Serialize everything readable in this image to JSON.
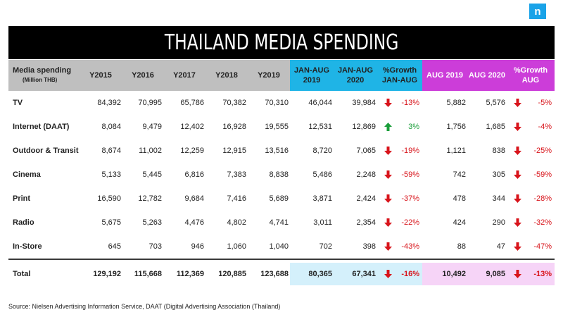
{
  "logo_letter": "n",
  "title": "THAILAND MEDIA SPENDING",
  "header": {
    "media": "Media spending",
    "media_sub": "(Million THB)",
    "y2015": "Y2015",
    "y2016": "Y2016",
    "y2017": "Y2017",
    "y2018": "Y2018",
    "y2019": "Y2019",
    "janaug2019_1": "JAN-AUG",
    "janaug2019_2": "2019",
    "janaug2020_1": "JAN-AUG",
    "janaug2020_2": "2020",
    "growth_janaug_1": "%Growth",
    "growth_janaug_2": "JAN-AUG",
    "aug2019": "AUG 2019",
    "aug2020": "AUG 2020",
    "growth_aug_1": "%Growth",
    "growth_aug_2": "AUG"
  },
  "rows": [
    {
      "name": "TV",
      "y2015": "84,392",
      "y2016": "70,995",
      "y2017": "65,786",
      "y2018": "70,382",
      "y2019": "70,310",
      "ja2019": "46,044",
      "ja2020": "39,984",
      "g1_dir": "down",
      "g1": "-13%",
      "a2019": "5,882",
      "a2020": "5,576",
      "g2_dir": "down",
      "g2": "-5%"
    },
    {
      "name": "Internet (DAAT)",
      "y2015": "8,084",
      "y2016": "9,479",
      "y2017": "12,402",
      "y2018": "16,928",
      "y2019": "19,555",
      "ja2019": "12,531",
      "ja2020": "12,869",
      "g1_dir": "up",
      "g1": "3%",
      "a2019": "1,756",
      "a2020": "1,685",
      "g2_dir": "down",
      "g2": "-4%"
    },
    {
      "name": "Outdoor & Transit",
      "y2015": "8,674",
      "y2016": "11,002",
      "y2017": "12,259",
      "y2018": "12,915",
      "y2019": "13,516",
      "ja2019": "8,720",
      "ja2020": "7,065",
      "g1_dir": "down",
      "g1": "-19%",
      "a2019": "1,121",
      "a2020": "838",
      "g2_dir": "down",
      "g2": "-25%"
    },
    {
      "name": "Cinema",
      "y2015": "5,133",
      "y2016": "5,445",
      "y2017": "6,816",
      "y2018": "7,383",
      "y2019": "8,838",
      "ja2019": "5,486",
      "ja2020": "2,248",
      "g1_dir": "down",
      "g1": "-59%",
      "a2019": "742",
      "a2020": "305",
      "g2_dir": "down",
      "g2": "-59%"
    },
    {
      "name": "Print",
      "y2015": "16,590",
      "y2016": "12,782",
      "y2017": "9,684",
      "y2018": "7,416",
      "y2019": "5,689",
      "ja2019": "3,871",
      "ja2020": "2,424",
      "g1_dir": "down",
      "g1": "-37%",
      "a2019": "478",
      "a2020": "344",
      "g2_dir": "down",
      "g2": "-28%"
    },
    {
      "name": "Radio",
      "y2015": "5,675",
      "y2016": "5,263",
      "y2017": "4,476",
      "y2018": "4,802",
      "y2019": "4,741",
      "ja2019": "3,011",
      "ja2020": "2,354",
      "g1_dir": "down",
      "g1": "-22%",
      "a2019": "424",
      "a2020": "290",
      "g2_dir": "down",
      "g2": "-32%"
    },
    {
      "name": "In-Store",
      "y2015": "645",
      "y2016": "703",
      "y2017": "946",
      "y2018": "1,060",
      "y2019": "1,040",
      "ja2019": "702",
      "ja2020": "398",
      "g1_dir": "down",
      "g1": "-43%",
      "a2019": "88",
      "a2020": "47",
      "g2_dir": "down",
      "g2": "-47%"
    }
  ],
  "total": {
    "name": "Total",
    "y2015": "129,192",
    "y2016": "115,668",
    "y2017": "112,369",
    "y2018": "120,885",
    "y2019": "123,688",
    "ja2019": "80,365",
    "ja2020": "67,341",
    "g1_dir": "down",
    "g1": "-16%",
    "a2019": "10,492",
    "a2020": "9,085",
    "g2_dir": "down",
    "g2": "-13%"
  },
  "source": "Source: Nielsen Advertising Information Service, DAAT (Digital Advertising Association (Thailand)",
  "colors": {
    "header_grey": "#bfbfbf",
    "header_blue": "#1fb4e6",
    "header_pink": "#cc3dd9",
    "arrow_down": "#d8141b",
    "arrow_up": "#1a9e3a",
    "logo_blue": "#1aa3e8"
  }
}
